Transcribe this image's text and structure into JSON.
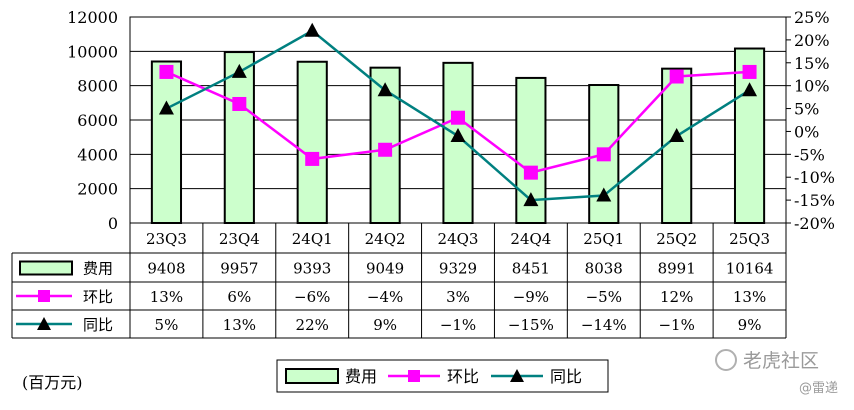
{
  "chart_data": {
    "type": "bar",
    "categories": [
      "23Q3",
      "23Q4",
      "24Q1",
      "24Q2",
      "24Q3",
      "24Q4",
      "25Q1",
      "25Q2",
      "25Q3"
    ],
    "series": [
      {
        "name": "费用",
        "kind": "bar",
        "axis": "left",
        "color": "#ccffcc",
        "values": [
          9408,
          9957,
          9393,
          9049,
          9329,
          8451,
          8038,
          8991,
          10164
        ],
        "labels": [
          "9408",
          "9957",
          "9393",
          "9049",
          "9329",
          "8451",
          "8038",
          "8991",
          "10164"
        ]
      },
      {
        "name": "环比",
        "kind": "line",
        "axis": "right",
        "marker": "square",
        "color": "#ff00ff",
        "values": [
          13,
          6,
          -6,
          -4,
          3,
          -9,
          -5,
          12,
          13
        ],
        "labels": [
          "13%",
          "6%",
          "−6%",
          "−4%",
          "3%",
          "−9%",
          "−5%",
          "12%",
          "13%"
        ]
      },
      {
        "name": "同比",
        "kind": "line",
        "axis": "right",
        "marker": "triangle",
        "color": "#008080",
        "values": [
          5,
          13,
          22,
          9,
          -1,
          -15,
          -14,
          -1,
          9
        ],
        "labels": [
          "5%",
          "13%",
          "22%",
          "9%",
          "−1%",
          "−15%",
          "−14%",
          "−1%",
          "9%"
        ]
      }
    ],
    "ylim": [
      0,
      12000
    ],
    "y_ticks": [
      "0",
      "2000",
      "4000",
      "6000",
      "8000",
      "10000",
      "12000"
    ],
    "y2lim": [
      -20,
      25
    ],
    "y2_ticks": [
      "-20%",
      "-15%",
      "-10%",
      "-5%",
      "0%",
      "5%",
      "10%",
      "15%",
      "20%",
      "25%"
    ],
    "grid": true,
    "data_table": true,
    "legend_position": "bottom",
    "unit_note": "(百万元)"
  },
  "watermark": {
    "brand": "老虎社区",
    "author": "@雷递"
  }
}
